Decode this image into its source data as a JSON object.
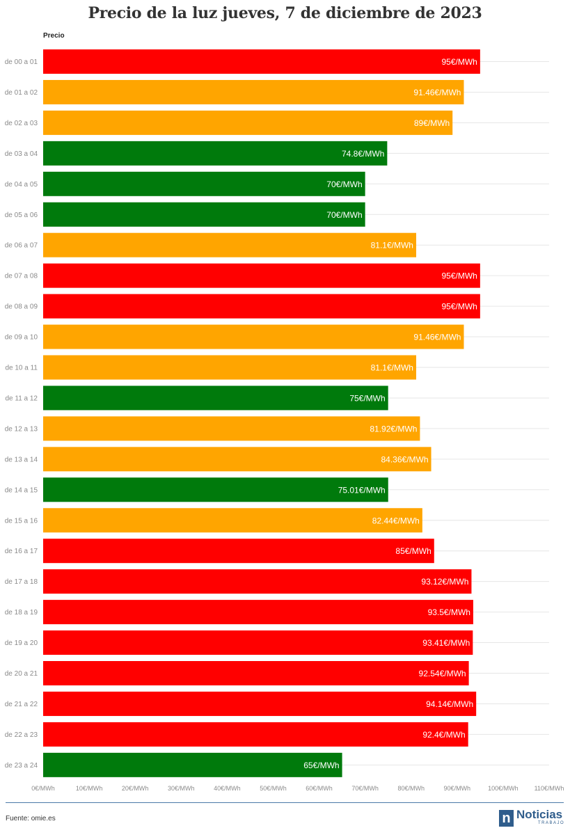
{
  "chart_data": {
    "type": "bar",
    "orientation": "horizontal",
    "title": "Precio de la luz jueves, 7 de diciembre de 2023",
    "legend_label": "Precio",
    "xlim": [
      0,
      110
    ],
    "x_ticks": [
      "0€/MWh",
      "10€/MWh",
      "20€/MWh",
      "30€/MWh",
      "40€/MWh",
      "50€/MWh",
      "60€/MWh",
      "70€/MWh",
      "80€/MWh",
      "90€/MWh",
      "100€/MWh",
      "110€/MWh"
    ],
    "grid": true,
    "categories": [
      "de 00 a 01",
      "de 01 a 02",
      "de 02 a 03",
      "de 03 a 04",
      "de 04 a 05",
      "de 05 a 06",
      "de 06 a 07",
      "de 07 a 08",
      "de 08 a 09",
      "de 09 a 10",
      "de 10 a 11",
      "de 11 a 12",
      "de 12 a 13",
      "de 13 a 14",
      "de 14 a 15",
      "de 15 a 16",
      "de 16 a 17",
      "de 17 a 18",
      "de 18 a 19",
      "de 19 a 20",
      "de 20 a 21",
      "de 21 a 22",
      "de 22 a 23",
      "de 23 a 24"
    ],
    "values": [
      95,
      91.46,
      89,
      74.8,
      70,
      70,
      81.1,
      95,
      95,
      91.46,
      81.1,
      75,
      81.92,
      84.36,
      75.01,
      82.44,
      85,
      93.12,
      93.5,
      93.41,
      92.54,
      94.14,
      92.4,
      65
    ],
    "labels": [
      "95€/MWh",
      "91.46€/MWh",
      "89€/MWh",
      "74.8€/MWh",
      "70€/MWh",
      "70€/MWh",
      "81.1€/MWh",
      "95€/MWh",
      "95€/MWh",
      "91.46€/MWh",
      "81.1€/MWh",
      "75€/MWh",
      "81.92€/MWh",
      "84.36€/MWh",
      "75.01€/MWh",
      "82.44€/MWh",
      "85€/MWh",
      "93.12€/MWh",
      "93.5€/MWh",
      "93.41€/MWh",
      "92.54€/MWh",
      "94.14€/MWh",
      "92.4€/MWh",
      "65€/MWh"
    ],
    "bar_colors": [
      "#ff0000",
      "#ffa500",
      "#ffa500",
      "#007a0c",
      "#007a0c",
      "#007a0c",
      "#ffa500",
      "#ff0000",
      "#ff0000",
      "#ffa500",
      "#ffa500",
      "#007a0c",
      "#ffa500",
      "#ffa500",
      "#007a0c",
      "#ffa500",
      "#ff0000",
      "#ff0000",
      "#ff0000",
      "#ff0000",
      "#ff0000",
      "#ff0000",
      "#ff0000",
      "#007a0c"
    ]
  },
  "footer": {
    "source": "Fuente: omie.es",
    "logo_mark": "n",
    "logo_word": "Noticias",
    "logo_sub": "TRABAJO",
    "accent_color": "#2f5d8c"
  }
}
